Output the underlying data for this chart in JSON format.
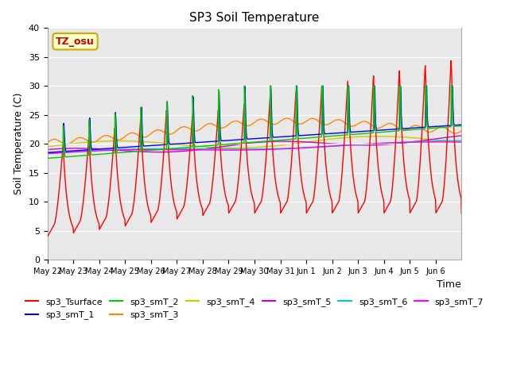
{
  "title": "SP3 Soil Temperature",
  "ylabel": "Soil Temperature (C)",
  "xlabel": "Time",
  "ylim": [
    0,
    40
  ],
  "xlim_days": 16,
  "annotation_text": "TZ_osu",
  "annotation_color": "#cc0000",
  "annotation_bg": "#ffffcc",
  "annotation_border": "#ccaa00",
  "background_color": "#e8e8e8",
  "series": [
    {
      "label": "sp3_Tsurface",
      "color": "#ff0000"
    },
    {
      "label": "sp3_smT_1",
      "color": "#0000ff"
    },
    {
      "label": "sp3_smT_2",
      "color": "#00cc00"
    },
    {
      "label": "sp3_smT_3",
      "color": "#ff8800"
    },
    {
      "label": "sp3_smT_4",
      "color": "#cccc00"
    },
    {
      "label": "sp3_smT_5",
      "color": "#cc00cc"
    },
    {
      "label": "sp3_smT_6",
      "color": "#00cccc"
    },
    {
      "label": "sp3_smT_7",
      "color": "#ff00ff"
    }
  ],
  "xtick_labels": [
    "May 22",
    "May 23",
    "May 24",
    "May 25",
    "May 26",
    "May 27",
    "May 28",
    "May 29",
    "May 30",
    "May 31",
    "Jun 1",
    "Jun 2",
    "Jun 3",
    "Jun 4",
    "Jun 5",
    "Jun 6"
  ],
  "xtick_positions": [
    0,
    1,
    2,
    3,
    4,
    5,
    6,
    7,
    8,
    9,
    10,
    11,
    12,
    13,
    14,
    15
  ],
  "ytick_labels": [
    "0",
    "5",
    "10",
    "15",
    "20",
    "25",
    "30",
    "35",
    "40"
  ],
  "ytick_positions": [
    0,
    5,
    10,
    15,
    20,
    25,
    30,
    35,
    40
  ]
}
